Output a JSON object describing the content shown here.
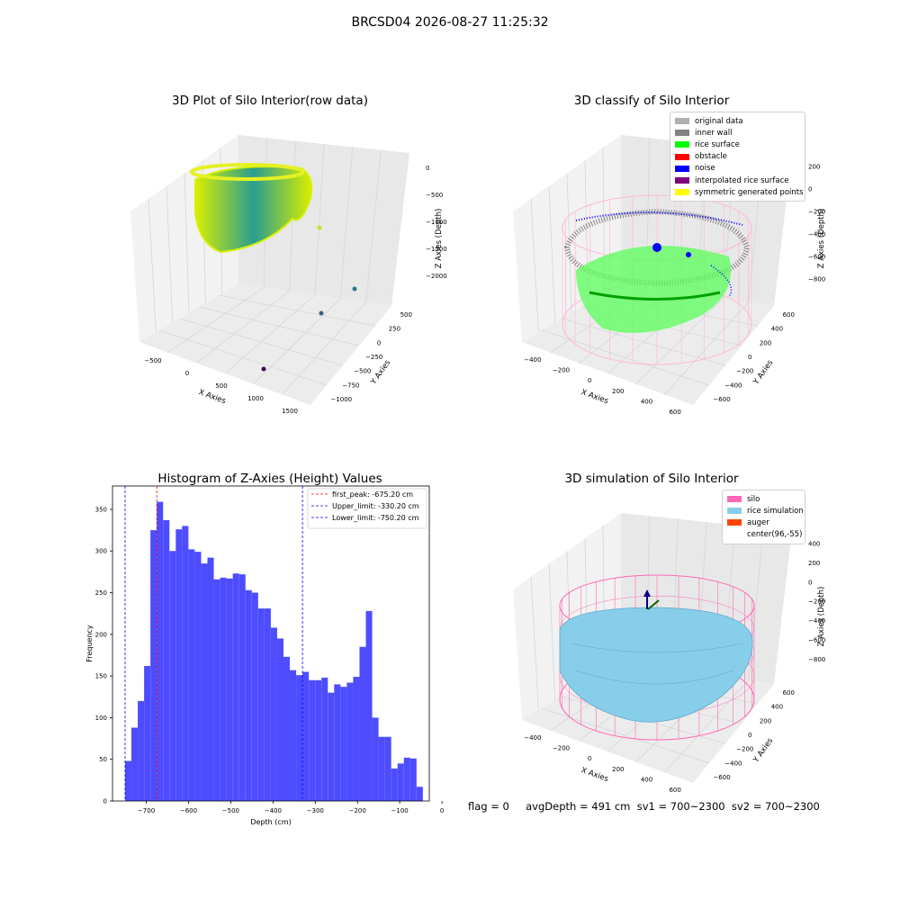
{
  "suptitle": "BRCSD04 2026-08-27 11:25:32",
  "colors": {
    "hist_bar": "#4d4dff",
    "rice_surface": "#00ff00",
    "noise": "#0000ff",
    "inner_wall": "#808080",
    "silo": "#ff69b4",
    "rice_simulation": "#87ceeb",
    "auger": "#ff4500",
    "viridis_low": "#2a9d8f",
    "viridis_high": "#d8f000"
  },
  "panel1": {
    "title": "3D Plot of Silo Interior(row data)",
    "xlabel": "X Axies",
    "ylabel": "Y Axies",
    "zlabel": "Z Axies (Depth)",
    "xticks": [
      "−500",
      "0",
      "500",
      "1000",
      "1500"
    ],
    "yticks": [
      "−1000",
      "−750",
      "−500",
      "−250",
      "0",
      "250",
      "500"
    ],
    "zticks": [
      "0",
      "−500",
      "−1000",
      "−1500",
      "−2000"
    ]
  },
  "panel2": {
    "title": "3D classify of Silo Interior",
    "xlabel": "X Axies",
    "ylabel": "Y Axies",
    "zlabel": "Z Axies (Depth)",
    "xticks": [
      "−400",
      "−200",
      "0",
      "200",
      "400",
      "600"
    ],
    "yticks": [
      "−600",
      "−400",
      "−200",
      "0",
      "200",
      "400",
      "600"
    ],
    "zticks": [
      "200",
      "0",
      "−200",
      "−400",
      "−600",
      "−800"
    ],
    "legend": [
      {
        "label": "original data",
        "color": "#b0b0b0"
      },
      {
        "label": "inner wall",
        "color": "#808080"
      },
      {
        "label": "rice surface",
        "color": "#00ff00"
      },
      {
        "label": "obstacle",
        "color": "#ff0000"
      },
      {
        "label": "noise",
        "color": "#0000ff"
      },
      {
        "label": "interpolated rice surface",
        "color": "#800080"
      },
      {
        "label": "symmetric generated points",
        "color": "#ffff00"
      }
    ]
  },
  "panel4": {
    "title": "3D simulation of Silo Interior",
    "xlabel": "X Axies",
    "ylabel": "Y Axies",
    "zlabel": "Z Axies (Depth)",
    "xticks": [
      "−400",
      "−200",
      "0",
      "200",
      "400",
      "600"
    ],
    "yticks": [
      "−600",
      "−400",
      "−200",
      "0",
      "200",
      "400",
      "600"
    ],
    "zticks": [
      "400",
      "200",
      "0",
      "−200",
      "−400",
      "−600",
      "−800"
    ],
    "legend": [
      {
        "label": "silo",
        "color": "#ff69b4"
      },
      {
        "label": "rice simulation",
        "color": "#87ceeb"
      },
      {
        "label": "auger",
        "color": "#ff4500"
      },
      {
        "label": "center(96,-55)",
        "color": ""
      }
    ]
  },
  "footer": "flag = 0     avgDepth = 491 cm  sv1 = 700~2300  sv2 = 700~2300",
  "chart_data": [
    {
      "type": "histogram",
      "title": "Histogram of Z-Axies (Height) Values",
      "xlabel": "Depth (cm)",
      "ylabel": "Frequency",
      "xlim": [
        -780,
        -30
      ],
      "ylim": [
        0,
        378
      ],
      "xticks": [
        -700,
        -600,
        -500,
        -400,
        -300,
        -200,
        -100,
        0
      ],
      "xtick_labels": [
        "−700",
        "−600",
        "−500",
        "−400",
        "−300",
        "−200",
        "−100",
        "0"
      ],
      "yticks": [
        0,
        50,
        100,
        150,
        200,
        250,
        300,
        350
      ],
      "bin_start": -750.2,
      "bin_width": 15,
      "values": [
        48,
        88,
        120,
        162,
        325,
        359,
        337,
        300,
        326,
        330,
        302,
        299,
        285,
        292,
        266,
        268,
        267,
        273,
        272,
        253,
        250,
        231,
        231,
        208,
        195,
        173,
        157,
        151,
        155,
        145,
        145,
        148,
        130,
        140,
        137,
        142,
        149,
        185,
        228,
        100,
        77,
        77,
        39,
        45,
        52,
        51,
        17
      ],
      "vlines": [
        {
          "x": -675.2,
          "label": "first_peak: -675.20 cm",
          "color": "#ff0000"
        },
        {
          "x": -330.2,
          "label": "Upper_limit: -330.20 cm",
          "color": "#0000ff"
        },
        {
          "x": -750.2,
          "label": "Lower_limit: -750.20 cm",
          "color": "#0000ff"
        }
      ]
    }
  ]
}
